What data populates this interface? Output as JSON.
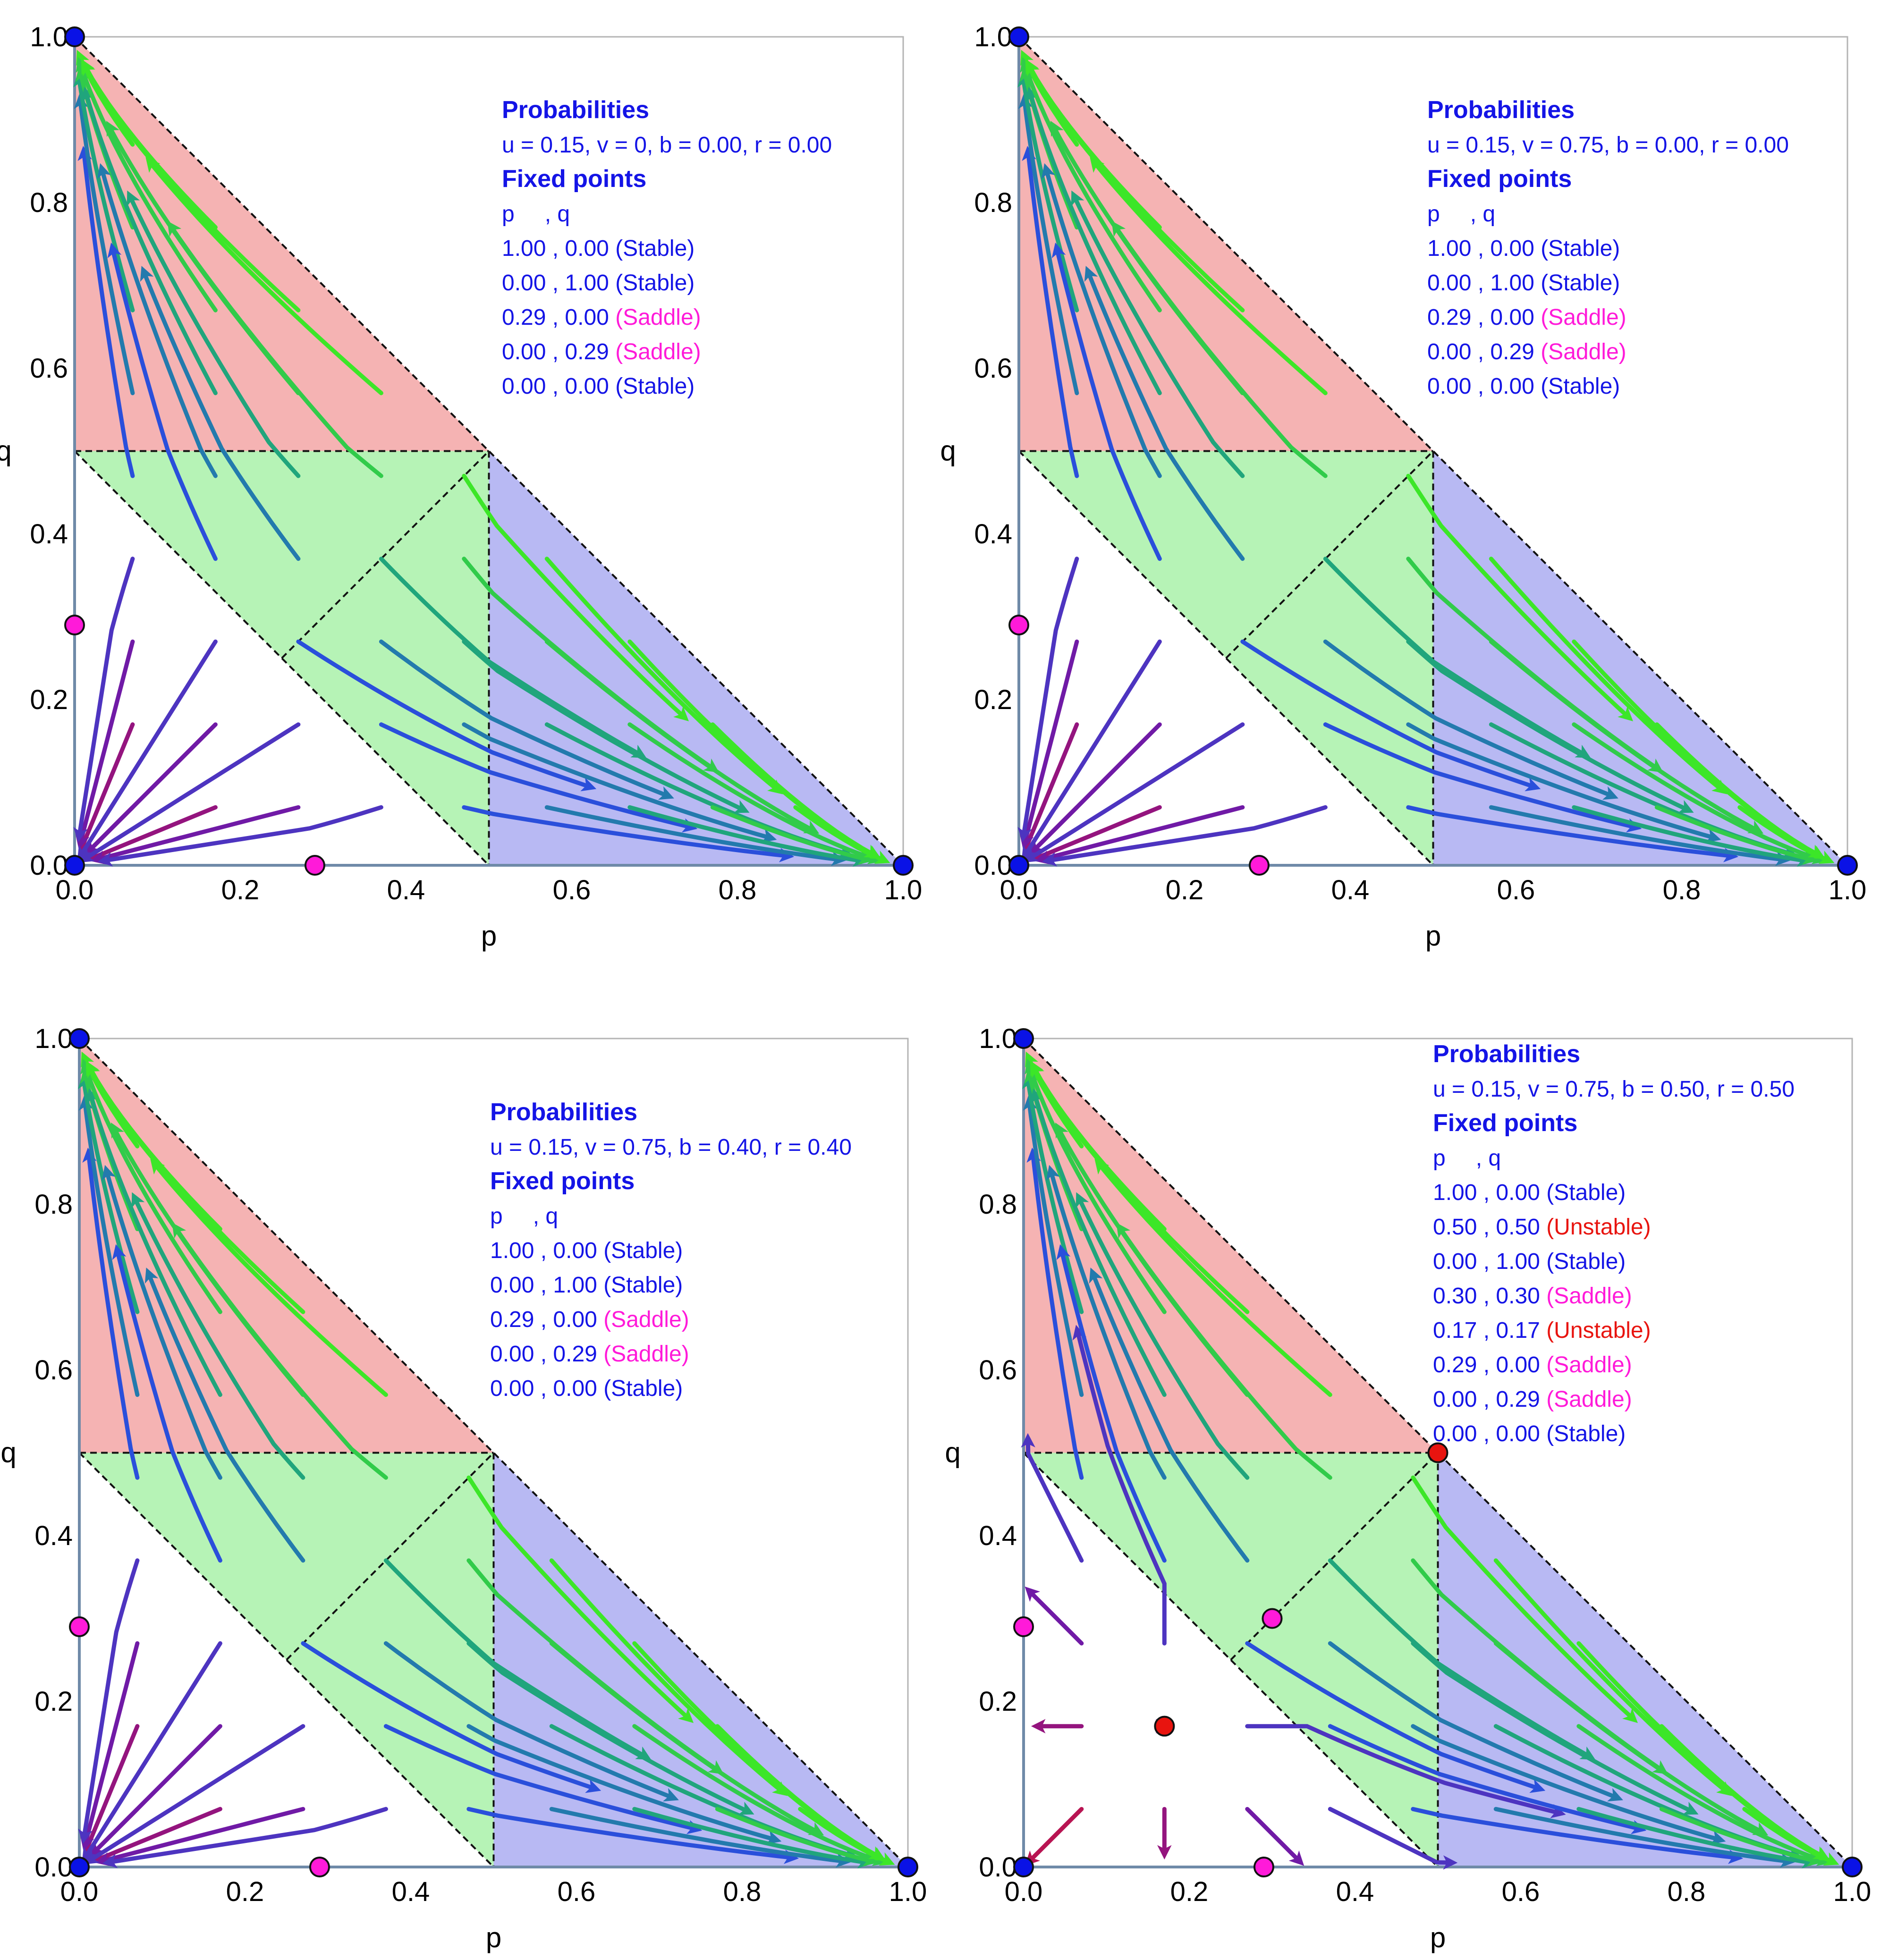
{
  "colors": {
    "region_red": "#f5b3b3",
    "region_green": "#b6f3b6",
    "region_blue": "#b8b9f3",
    "stable": "#0a12e6",
    "saddle": "#ff1ad9",
    "unstable": "#e8140f",
    "text_blue": "#1414e6",
    "axis": "#6f8aa8"
  },
  "shared_labels": {
    "xlabel": "p",
    "ylabel": "q",
    "x_ticks": [
      "0.0",
      "0.2",
      "0.4",
      "0.6",
      "0.8",
      "1.0"
    ],
    "y_ticks": [
      "0.0",
      "0.2",
      "0.4",
      "0.6",
      "0.8",
      "1.0"
    ]
  },
  "chart_data": [
    {
      "type": "stream",
      "title": "Probabilities",
      "params": "u = 0.15, v = 0, b = 0.00, r = 0.00",
      "xlim": [
        0,
        1
      ],
      "ylim": [
        0,
        1
      ],
      "fixed_header": "Fixed points",
      "col_header": {
        "p": "p",
        "q": ", q"
      },
      "fixed_points": [
        {
          "p": 1.0,
          "q": 0.0,
          "label": "1.00 , 0.00",
          "type": "Stable",
          "type_label": "(Stable)"
        },
        {
          "p": 0.0,
          "q": 1.0,
          "label": "0.00 , 1.00",
          "type": "Stable",
          "type_label": "(Stable)"
        },
        {
          "p": 0.29,
          "q": 0.0,
          "label": "0.29 , 0.00",
          "type": "Saddle",
          "type_label": "(Saddle)"
        },
        {
          "p": 0.0,
          "q": 0.29,
          "label": "0.00 , 0.29",
          "type": "Saddle",
          "type_label": "(Saddle)"
        },
        {
          "p": 0.0,
          "q": 0.0,
          "label": "0.00 , 0.00",
          "type": "Stable",
          "type_label": "(Stable)"
        }
      ]
    },
    {
      "type": "stream",
      "title": "Probabilities",
      "params": "u = 0.15, v = 0.75, b = 0.00, r = 0.00",
      "xlim": [
        0,
        1
      ],
      "ylim": [
        0,
        1
      ],
      "fixed_header": "Fixed points",
      "col_header": {
        "p": "p",
        "q": ", q"
      },
      "fixed_points": [
        {
          "p": 1.0,
          "q": 0.0,
          "label": "1.00 , 0.00",
          "type": "Stable",
          "type_label": "(Stable)"
        },
        {
          "p": 0.0,
          "q": 1.0,
          "label": "0.00 , 1.00",
          "type": "Stable",
          "type_label": "(Stable)"
        },
        {
          "p": 0.29,
          "q": 0.0,
          "label": "0.29 , 0.00",
          "type": "Saddle",
          "type_label": "(Saddle)"
        },
        {
          "p": 0.0,
          "q": 0.29,
          "label": "0.00 , 0.29",
          "type": "Saddle",
          "type_label": "(Saddle)"
        },
        {
          "p": 0.0,
          "q": 0.0,
          "label": "0.00 , 0.00",
          "type": "Stable",
          "type_label": "(Stable)"
        }
      ]
    },
    {
      "type": "stream",
      "title": "Probabilities",
      "params": "u = 0.15, v = 0.75, b = 0.40, r = 0.40",
      "xlim": [
        0,
        1
      ],
      "ylim": [
        0,
        1
      ],
      "fixed_header": "Fixed points",
      "col_header": {
        "p": "p",
        "q": ", q"
      },
      "fixed_points": [
        {
          "p": 1.0,
          "q": 0.0,
          "label": "1.00 , 0.00",
          "type": "Stable",
          "type_label": "(Stable)"
        },
        {
          "p": 0.0,
          "q": 1.0,
          "label": "0.00 , 1.00",
          "type": "Stable",
          "type_label": "(Stable)"
        },
        {
          "p": 0.29,
          "q": 0.0,
          "label": "0.29 , 0.00",
          "type": "Saddle",
          "type_label": "(Saddle)"
        },
        {
          "p": 0.0,
          "q": 0.29,
          "label": "0.00 , 0.29",
          "type": "Saddle",
          "type_label": "(Saddle)"
        },
        {
          "p": 0.0,
          "q": 0.0,
          "label": "0.00 , 0.00",
          "type": "Stable",
          "type_label": "(Stable)"
        }
      ]
    },
    {
      "type": "stream",
      "title": "Probabilities",
      "params": "u = 0.15, v = 0.75, b = 0.50, r = 0.50",
      "xlim": [
        0,
        1
      ],
      "ylim": [
        0,
        1
      ],
      "fixed_header": "Fixed points",
      "col_header": {
        "p": "p",
        "q": ", q"
      },
      "fixed_points": [
        {
          "p": 1.0,
          "q": 0.0,
          "label": "1.00 , 0.00",
          "type": "Stable",
          "type_label": "(Stable)"
        },
        {
          "p": 0.5,
          "q": 0.5,
          "label": "0.50 , 0.50",
          "type": "Unstable",
          "type_label": "(Unstable)"
        },
        {
          "p": 0.0,
          "q": 1.0,
          "label": "0.00 , 1.00",
          "type": "Stable",
          "type_label": "(Stable)"
        },
        {
          "p": 0.3,
          "q": 0.3,
          "label": "0.30 , 0.30",
          "type": "Saddle",
          "type_label": "(Saddle)"
        },
        {
          "p": 0.17,
          "q": 0.17,
          "label": "0.17 , 0.17",
          "type": "Unstable",
          "type_label": "(Unstable)"
        },
        {
          "p": 0.29,
          "q": 0.0,
          "label": "0.29 , 0.00",
          "type": "Saddle",
          "type_label": "(Saddle)"
        },
        {
          "p": 0.0,
          "q": 0.29,
          "label": "0.00 , 0.29",
          "type": "Saddle",
          "type_label": "(Saddle)"
        },
        {
          "p": 0.0,
          "q": 0.0,
          "label": "0.00 , 0.00",
          "type": "Stable",
          "type_label": "(Stable)"
        }
      ]
    }
  ]
}
